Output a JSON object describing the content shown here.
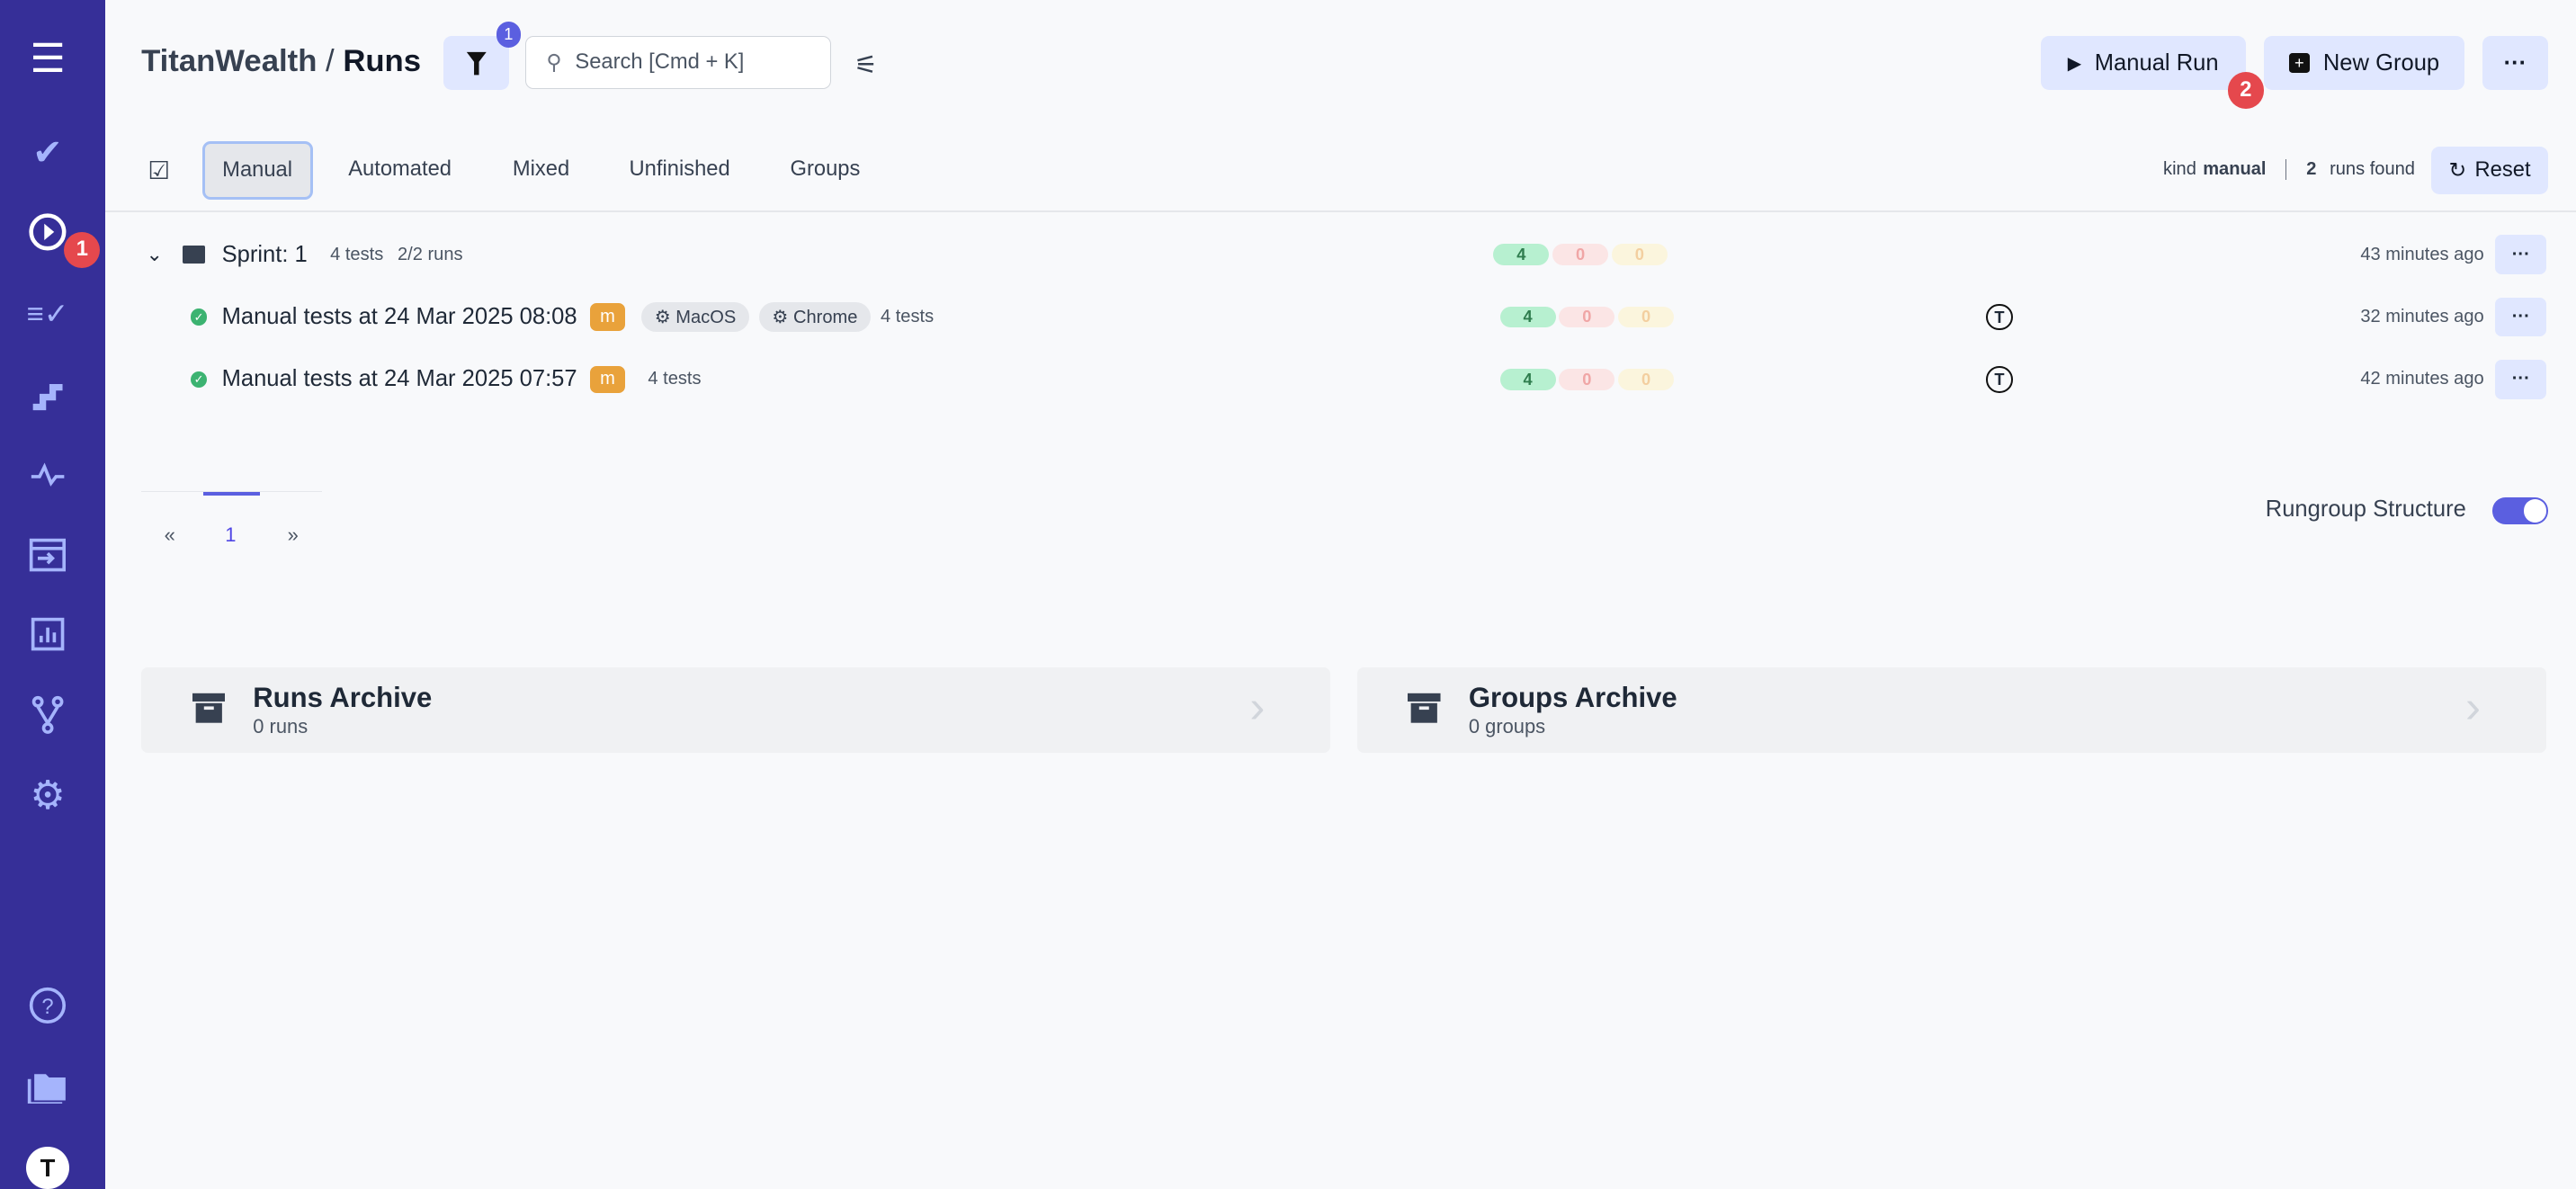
{
  "sidebar": {
    "items": [
      {
        "icon": "menu-icon"
      },
      {
        "icon": "check-icon"
      },
      {
        "icon": "play-circle-icon",
        "badge": "1"
      },
      {
        "icon": "list-check-icon"
      },
      {
        "icon": "steps-icon"
      },
      {
        "icon": "pulse-icon"
      },
      {
        "icon": "import-icon"
      },
      {
        "icon": "chart-icon"
      },
      {
        "icon": "branch-icon"
      },
      {
        "icon": "gear-icon"
      },
      {
        "icon": "help-icon"
      },
      {
        "icon": "folders-icon"
      },
      {
        "icon": "avatar-icon",
        "label": "T"
      }
    ]
  },
  "header": {
    "project": "TitanWealth",
    "separator": "/",
    "page": "Runs",
    "filter_count": "1",
    "search_placeholder": "Search [Cmd + K]",
    "manual_run": "Manual Run",
    "manual_run_badge": "2",
    "new_group": "New Group",
    "more": "···"
  },
  "tabs": [
    {
      "label": "Manual"
    },
    {
      "label": "Automated"
    },
    {
      "label": "Mixed"
    },
    {
      "label": "Unfinished"
    },
    {
      "label": "Groups"
    }
  ],
  "summary": {
    "kind_label": "kind",
    "kind_value": "manual",
    "count": "2",
    "found": "runs found",
    "reset": "Reset"
  },
  "group": {
    "name": "Sprint: 1",
    "tests": "4 tests",
    "runs": "2/2 runs",
    "passed": "4",
    "failed": "0",
    "skipped": "0",
    "time": "43 minutes ago"
  },
  "runs": [
    {
      "title": "Manual tests at 24 Mar 2025 08:08",
      "badge": "m",
      "env": [
        "MacOS",
        "Chrome"
      ],
      "tests": "4 tests",
      "passed": "4",
      "failed": "0",
      "skipped": "0",
      "avatar": "T",
      "time": "32 minutes ago"
    },
    {
      "title": "Manual tests at 24 Mar 2025 07:57",
      "badge": "m",
      "tests": "4 tests",
      "passed": "4",
      "failed": "0",
      "skipped": "0",
      "avatar": "T",
      "time": "42 minutes ago"
    }
  ],
  "pagination": {
    "prev": "«",
    "current": "1",
    "next": "»"
  },
  "rungroup_toggle": {
    "label": "Rungroup Structure",
    "on": true
  },
  "archives": [
    {
      "title": "Runs Archive",
      "sub": "0 runs"
    },
    {
      "title": "Groups Archive",
      "sub": "0 groups"
    }
  ],
  "colors": {
    "sidebar": "#362f98",
    "accent": "#e0e7ff",
    "badge": "#e5484d",
    "passed": "#b7f0d0",
    "manual_badge": "#e9a23b"
  }
}
